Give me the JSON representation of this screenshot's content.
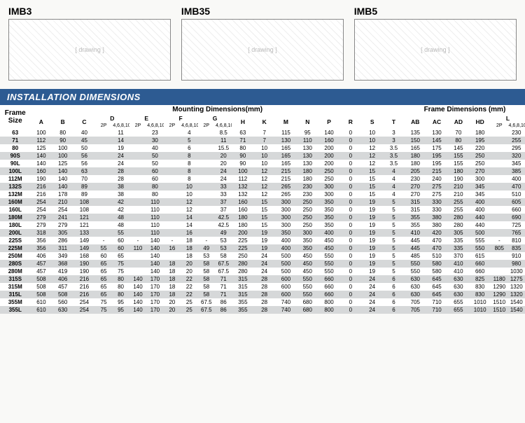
{
  "diagrams": [
    {
      "label": "IMB3"
    },
    {
      "label": "IMB35"
    },
    {
      "label": "IMB5"
    }
  ],
  "section_title": "INSTALLATION DIMENSIONS",
  "groups": {
    "mounting": "Mounting Dimensions(mm)",
    "frame": "Frame Dimensions (mm)"
  },
  "header": {
    "frame": "Frame Size",
    "cols": [
      "A",
      "B",
      "C",
      "D",
      "E",
      "F",
      "G",
      "H",
      "K",
      "M",
      "N",
      "P",
      "R",
      "S",
      "T",
      "AB",
      "AC",
      "AD",
      "HD",
      "L"
    ],
    "sub": {
      "p2": "2P",
      "p4": "4,6,8,10P"
    }
  },
  "rows": [
    {
      "f": "63",
      "A": "100",
      "B": "80",
      "C": "40",
      "D2": "",
      "D4": "11",
      "E2": "",
      "E4": "23",
      "F2": "",
      "F4": "4",
      "G2": "",
      "G4": "8.5",
      "H": "63",
      "K": "7",
      "M": "115",
      "N": "95",
      "P": "140",
      "R": "0",
      "S": "10",
      "T": "3",
      "AB": "135",
      "AC": "130",
      "AD": "70",
      "HD": "180",
      "L2": "",
      "L4": "230"
    },
    {
      "f": "71",
      "A": "112",
      "B": "90",
      "C": "45",
      "D2": "",
      "D4": "14",
      "E2": "",
      "E4": "30",
      "F2": "",
      "F4": "5",
      "G2": "",
      "G4": "11",
      "H": "71",
      "K": "7",
      "M": "130",
      "N": "110",
      "P": "160",
      "R": "0",
      "S": "10",
      "T": "3",
      "AB": "150",
      "AC": "145",
      "AD": "80",
      "HD": "195",
      "L2": "",
      "L4": "255"
    },
    {
      "f": "80",
      "A": "125",
      "B": "100",
      "C": "50",
      "D2": "",
      "D4": "19",
      "E2": "",
      "E4": "40",
      "F2": "",
      "F4": "6",
      "G2": "",
      "G4": "15.5",
      "H": "80",
      "K": "10",
      "M": "165",
      "N": "130",
      "P": "200",
      "R": "0",
      "S": "12",
      "T": "3.5",
      "AB": "165",
      "AC": "175",
      "AD": "145",
      "HD": "220",
      "L2": "",
      "L4": "295"
    },
    {
      "f": "90S",
      "A": "140",
      "B": "100",
      "C": "56",
      "D2": "",
      "D4": "24",
      "E2": "",
      "E4": "50",
      "F2": "",
      "F4": "8",
      "G2": "",
      "G4": "20",
      "H": "90",
      "K": "10",
      "M": "165",
      "N": "130",
      "P": "200",
      "R": "0",
      "S": "12",
      "T": "3.5",
      "AB": "180",
      "AC": "195",
      "AD": "155",
      "HD": "250",
      "L2": "",
      "L4": "320"
    },
    {
      "f": "90L",
      "A": "140",
      "B": "125",
      "C": "56",
      "D2": "",
      "D4": "24",
      "E2": "",
      "E4": "50",
      "F2": "",
      "F4": "8",
      "G2": "",
      "G4": "20",
      "H": "90",
      "K": "10",
      "M": "165",
      "N": "130",
      "P": "200",
      "R": "0",
      "S": "12",
      "T": "3.5",
      "AB": "180",
      "AC": "195",
      "AD": "155",
      "HD": "250",
      "L2": "",
      "L4": "345"
    },
    {
      "f": "100L",
      "A": "160",
      "B": "140",
      "C": "63",
      "D2": "",
      "D4": "28",
      "E2": "",
      "E4": "60",
      "F2": "",
      "F4": "8",
      "G2": "",
      "G4": "24",
      "H": "100",
      "K": "12",
      "M": "215",
      "N": "180",
      "P": "250",
      "R": "0",
      "S": "15",
      "T": "4",
      "AB": "205",
      "AC": "215",
      "AD": "180",
      "HD": "270",
      "L2": "",
      "L4": "385"
    },
    {
      "f": "112M",
      "A": "190",
      "B": "140",
      "C": "70",
      "D2": "",
      "D4": "28",
      "E2": "",
      "E4": "60",
      "F2": "",
      "F4": "8",
      "G2": "",
      "G4": "24",
      "H": "112",
      "K": "12",
      "M": "215",
      "N": "180",
      "P": "250",
      "R": "0",
      "S": "15",
      "T": "4",
      "AB": "230",
      "AC": "240",
      "AD": "190",
      "HD": "300",
      "L2": "",
      "L4": "400"
    },
    {
      "f": "132S",
      "A": "216",
      "B": "140",
      "C": "89",
      "D2": "",
      "D4": "38",
      "E2": "",
      "E4": "80",
      "F2": "",
      "F4": "10",
      "G2": "",
      "G4": "33",
      "H": "132",
      "K": "12",
      "M": "265",
      "N": "230",
      "P": "300",
      "R": "0",
      "S": "15",
      "T": "4",
      "AB": "270",
      "AC": "275",
      "AD": "210",
      "HD": "345",
      "L2": "",
      "L4": "470"
    },
    {
      "f": "132M",
      "A": "216",
      "B": "178",
      "C": "89",
      "D2": "",
      "D4": "38",
      "E2": "",
      "E4": "80",
      "F2": "",
      "F4": "10",
      "G2": "",
      "G4": "33",
      "H": "132",
      "K": "12",
      "M": "265",
      "N": "230",
      "P": "300",
      "R": "0",
      "S": "15",
      "T": "4",
      "AB": "270",
      "AC": "275",
      "AD": "210",
      "HD": "345",
      "L2": "",
      "L4": "510"
    },
    {
      "f": "160M",
      "A": "254",
      "B": "210",
      "C": "108",
      "D2": "",
      "D4": "42",
      "E2": "",
      "E4": "110",
      "F2": "",
      "F4": "12",
      "G2": "",
      "G4": "37",
      "H": "160",
      "K": "15",
      "M": "300",
      "N": "250",
      "P": "350",
      "R": "0",
      "S": "19",
      "T": "5",
      "AB": "315",
      "AC": "330",
      "AD": "255",
      "HD": "400",
      "L2": "",
      "L4": "605"
    },
    {
      "f": "160L",
      "A": "254",
      "B": "254",
      "C": "108",
      "D2": "",
      "D4": "42",
      "E2": "",
      "E4": "110",
      "F2": "",
      "F4": "12",
      "G2": "",
      "G4": "37",
      "H": "160",
      "K": "15",
      "M": "300",
      "N": "250",
      "P": "350",
      "R": "0",
      "S": "19",
      "T": "5",
      "AB": "315",
      "AC": "330",
      "AD": "255",
      "HD": "400",
      "L2": "",
      "L4": "660"
    },
    {
      "f": "180M",
      "A": "279",
      "B": "241",
      "C": "121",
      "D2": "",
      "D4": "48",
      "E2": "",
      "E4": "110",
      "F2": "",
      "F4": "14",
      "G2": "",
      "G4": "42.5",
      "H": "180",
      "K": "15",
      "M": "300",
      "N": "250",
      "P": "350",
      "R": "0",
      "S": "19",
      "T": "5",
      "AB": "355",
      "AC": "380",
      "AD": "280",
      "HD": "440",
      "L2": "",
      "L4": "690"
    },
    {
      "f": "180L",
      "A": "279",
      "B": "279",
      "C": "121",
      "D2": "",
      "D4": "48",
      "E2": "",
      "E4": "110",
      "F2": "",
      "F4": "14",
      "G2": "",
      "G4": "42.5",
      "H": "180",
      "K": "15",
      "M": "300",
      "N": "250",
      "P": "350",
      "R": "0",
      "S": "19",
      "T": "5",
      "AB": "355",
      "AC": "380",
      "AD": "280",
      "HD": "440",
      "L2": "",
      "L4": "725"
    },
    {
      "f": "200L",
      "A": "318",
      "B": "305",
      "C": "133",
      "D2": "",
      "D4": "55",
      "E2": "",
      "E4": "110",
      "F2": "",
      "F4": "16",
      "G2": "",
      "G4": "49",
      "H": "200",
      "K": "19",
      "M": "350",
      "N": "300",
      "P": "400",
      "R": "0",
      "S": "19",
      "T": "5",
      "AB": "410",
      "AC": "420",
      "AD": "305",
      "HD": "500",
      "L2": "",
      "L4": "765"
    },
    {
      "f": "225S",
      "A": "356",
      "B": "286",
      "C": "149",
      "D2": "-",
      "D4": "60",
      "E2": "-",
      "E4": "140",
      "F2": "-",
      "F4": "18",
      "G2": "-",
      "G4": "53",
      "H": "225",
      "K": "19",
      "M": "400",
      "N": "350",
      "P": "450",
      "R": "0",
      "S": "19",
      "T": "5",
      "AB": "445",
      "AC": "470",
      "AD": "335",
      "HD": "555",
      "L2": "-",
      "L4": "810"
    },
    {
      "f": "225M",
      "A": "356",
      "B": "311",
      "C": "149",
      "D2": "55",
      "D4": "60",
      "E2": "110",
      "E4": "140",
      "F2": "16",
      "F4": "18",
      "G2": "49",
      "G4": "53",
      "H": "225",
      "K": "19",
      "M": "400",
      "N": "350",
      "P": "450",
      "R": "0",
      "S": "19",
      "T": "5",
      "AB": "445",
      "AC": "470",
      "AD": "335",
      "HD": "550",
      "L2": "805",
      "L4": "835"
    },
    {
      "f": "250M",
      "A": "406",
      "B": "349",
      "C": "168",
      "D2": "60",
      "D4": "65",
      "E2": "",
      "E4": "140",
      "F2": "",
      "F4": "18",
      "G2": "53",
      "G4": "58",
      "H": "250",
      "K": "24",
      "M": "500",
      "N": "450",
      "P": "550",
      "R": "0",
      "S": "19",
      "T": "5",
      "AB": "485",
      "AC": "510",
      "AD": "370",
      "HD": "615",
      "L2": "",
      "L4": "910"
    },
    {
      "f": "280S",
      "A": "457",
      "B": "368",
      "C": "190",
      "D2": "65",
      "D4": "75",
      "E2": "",
      "E4": "140",
      "F2": "18",
      "F4": "20",
      "G2": "58",
      "G4": "67.5",
      "H": "280",
      "K": "24",
      "M": "500",
      "N": "450",
      "P": "550",
      "R": "0",
      "S": "19",
      "T": "5",
      "AB": "550",
      "AC": "580",
      "AD": "410",
      "HD": "660",
      "L2": "",
      "L4": "980"
    },
    {
      "f": "280M",
      "A": "457",
      "B": "419",
      "C": "190",
      "D2": "65",
      "D4": "75",
      "E2": "",
      "E4": "140",
      "F2": "18",
      "F4": "20",
      "G2": "58",
      "G4": "67.5",
      "H": "280",
      "K": "24",
      "M": "500",
      "N": "450",
      "P": "550",
      "R": "0",
      "S": "19",
      "T": "5",
      "AB": "550",
      "AC": "580",
      "AD": "410",
      "HD": "660",
      "L2": "",
      "L4": "1030"
    },
    {
      "f": "315S",
      "A": "508",
      "B": "406",
      "C": "216",
      "D2": "65",
      "D4": "80",
      "E2": "140",
      "E4": "170",
      "F2": "18",
      "F4": "22",
      "G2": "58",
      "G4": "71",
      "H": "315",
      "K": "28",
      "M": "600",
      "N": "550",
      "P": "660",
      "R": "0",
      "S": "24",
      "T": "6",
      "AB": "630",
      "AC": "645",
      "AD": "630",
      "HD": "825",
      "L2": "1180",
      "L4": "1275"
    },
    {
      "f": "315M",
      "A": "508",
      "B": "457",
      "C": "216",
      "D2": "65",
      "D4": "80",
      "E2": "140",
      "E4": "170",
      "F2": "18",
      "F4": "22",
      "G2": "58",
      "G4": "71",
      "H": "315",
      "K": "28",
      "M": "600",
      "N": "550",
      "P": "660",
      "R": "0",
      "S": "24",
      "T": "6",
      "AB": "630",
      "AC": "645",
      "AD": "630",
      "HD": "830",
      "L2": "1290",
      "L4": "1320"
    },
    {
      "f": "315L",
      "A": "508",
      "B": "508",
      "C": "216",
      "D2": "65",
      "D4": "80",
      "E2": "140",
      "E4": "170",
      "F2": "18",
      "F4": "22",
      "G2": "58",
      "G4": "71",
      "H": "315",
      "K": "28",
      "M": "600",
      "N": "550",
      "P": "660",
      "R": "0",
      "S": "24",
      "T": "6",
      "AB": "630",
      "AC": "645",
      "AD": "630",
      "HD": "830",
      "L2": "1290",
      "L4": "1320"
    },
    {
      "f": "355M",
      "A": "610",
      "B": "560",
      "C": "254",
      "D2": "75",
      "D4": "95",
      "E2": "140",
      "E4": "170",
      "F2": "20",
      "F4": "25",
      "G2": "67.5",
      "G4": "86",
      "H": "355",
      "K": "28",
      "M": "740",
      "N": "680",
      "P": "800",
      "R": "0",
      "S": "24",
      "T": "6",
      "AB": "705",
      "AC": "710",
      "AD": "655",
      "HD": "1010",
      "L2": "1510",
      "L4": "1540"
    },
    {
      "f": "355L",
      "A": "610",
      "B": "630",
      "C": "254",
      "D2": "75",
      "D4": "95",
      "E2": "140",
      "E4": "170",
      "F2": "20",
      "F4": "25",
      "G2": "67.5",
      "G4": "86",
      "H": "355",
      "K": "28",
      "M": "740",
      "N": "680",
      "P": "800",
      "R": "0",
      "S": "24",
      "T": "6",
      "AB": "705",
      "AC": "710",
      "AD": "655",
      "HD": "1010",
      "L2": "1510",
      "L4": "1540"
    }
  ]
}
